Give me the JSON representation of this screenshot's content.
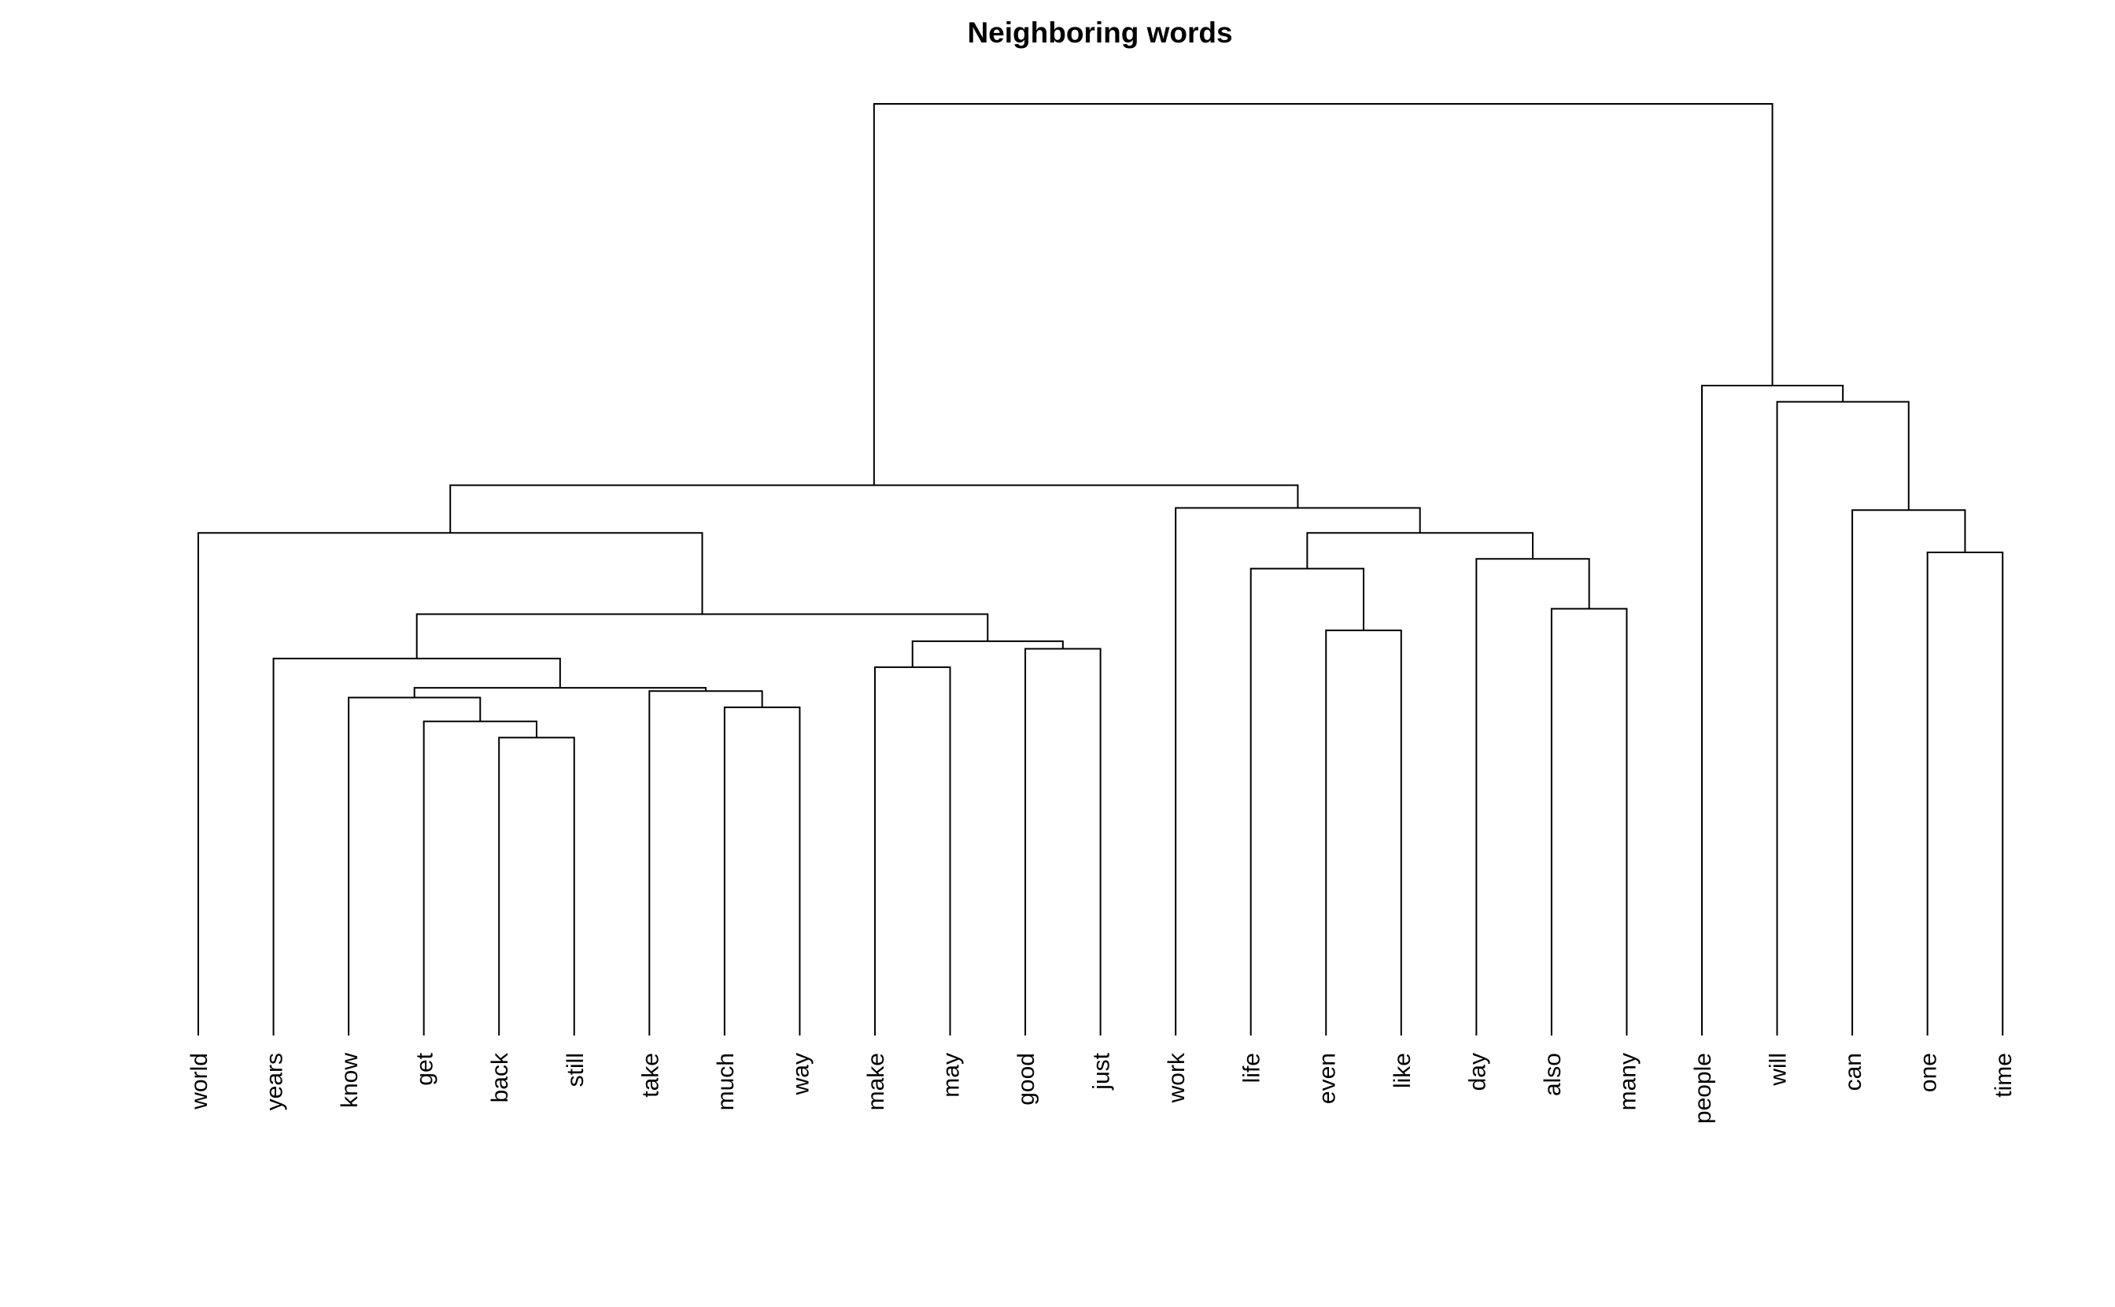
{
  "chart_data": {
    "type": "dendrogram",
    "title": "Neighboring words",
    "leaves": [
      "world",
      "years",
      "know",
      "get",
      "back",
      "still",
      "take",
      "much",
      "way",
      "make",
      "may",
      "good",
      "just",
      "work",
      "life",
      "even",
      "like",
      "day",
      "also",
      "many",
      "people",
      "will",
      "can",
      "one",
      "time"
    ],
    "merges": [
      {
        "left": "back",
        "right": "still",
        "height": 0.275
      },
      {
        "left": "get",
        "right": "back+still",
        "height": 0.29
      },
      {
        "left": "much",
        "right": "way",
        "height": 0.303
      },
      {
        "left": "know",
        "right": "get+back+still",
        "height": 0.312
      },
      {
        "left": "take",
        "right": "much+way",
        "height": 0.318
      },
      {
        "left": "know+get+back+still",
        "right": "take+much+way",
        "height": 0.321
      },
      {
        "left": "make",
        "right": "may",
        "height": 0.34
      },
      {
        "left": "years",
        "right": "know..way",
        "height": 0.348
      },
      {
        "left": "good",
        "right": "just",
        "height": 0.357
      },
      {
        "left": "make+may",
        "right": "good+just",
        "height": 0.364
      },
      {
        "left": "even",
        "right": "like",
        "height": 0.374
      },
      {
        "left": "years..way",
        "right": "make..just",
        "height": 0.389
      },
      {
        "left": "also",
        "right": "many",
        "height": 0.394
      },
      {
        "left": "life",
        "right": "even+like",
        "height": 0.431
      },
      {
        "left": "day",
        "right": "also+many",
        "height": 0.44
      },
      {
        "left": "one",
        "right": "time",
        "height": 0.446
      },
      {
        "left": "life+even+like",
        "right": "day+also+many",
        "height": 0.464
      },
      {
        "left": "world",
        "right": "years..just",
        "height": 0.464
      },
      {
        "left": "can",
        "right": "one+time",
        "height": 0.485
      },
      {
        "left": "work",
        "right": "life..many",
        "height": 0.487
      },
      {
        "left": "world..just",
        "right": "work..many",
        "height": 0.508
      },
      {
        "left": "will",
        "right": "can+one+time",
        "height": 0.585
      },
      {
        "left": "people",
        "right": "will..time",
        "height": 0.6
      },
      {
        "left": "world..many",
        "right": "people..time",
        "height": 0.86
      }
    ]
  }
}
